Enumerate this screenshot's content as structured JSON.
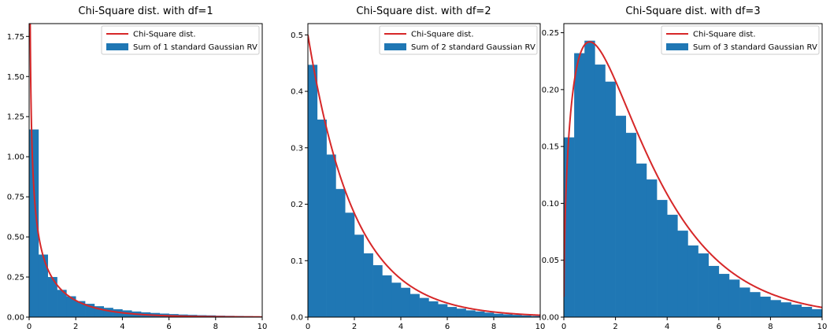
{
  "colors": {
    "bar": "#1f77b4",
    "curve": "#d62728",
    "axis": "#000000"
  },
  "legend_labels": {
    "curve": "Chi-Square dist.",
    "bars": [
      "Sum of 1 standard Gaussian RV",
      "Sum of 2 standard Gaussian RV",
      "Sum of 3 standard Gaussian RV"
    ]
  },
  "chart_data": [
    {
      "type": "bar",
      "title": "Chi-Square dist. with df=1",
      "df": 1,
      "xlim": [
        0,
        10
      ],
      "ylim": [
        0,
        1.83
      ],
      "x_ticks": [
        "0",
        "2",
        "4",
        "6",
        "8",
        "10"
      ],
      "y_ticks": [
        "0.00",
        "0.25",
        "0.50",
        "0.75",
        "1.00",
        "1.25",
        "1.50",
        "1.75"
      ],
      "bin_width": 0.4,
      "values": [
        1.17,
        0.39,
        0.25,
        0.17,
        0.13,
        0.1,
        0.083,
        0.068,
        0.058,
        0.049,
        0.042,
        0.035,
        0.03,
        0.026,
        0.022,
        0.019,
        0.016,
        0.014,
        0.012,
        0.011,
        0.009,
        0.008,
        0.007,
        0.006,
        0.005
      ],
      "series": [
        {
          "name": "Chi-Square dist.",
          "type": "line"
        },
        {
          "name": "Sum of 1 standard Gaussian RV",
          "type": "bar"
        }
      ],
      "legend_position": "upper right"
    },
    {
      "type": "bar",
      "title": "Chi-Square dist. with df=2",
      "df": 2,
      "xlim": [
        0,
        10
      ],
      "ylim": [
        0,
        0.52
      ],
      "x_ticks": [
        "0",
        "2",
        "4",
        "6",
        "8",
        "10"
      ],
      "y_ticks": [
        "0.0",
        "0.1",
        "0.2",
        "0.3",
        "0.4",
        "0.5"
      ],
      "bin_width": 0.4,
      "values": [
        0.447,
        0.35,
        0.288,
        0.227,
        0.185,
        0.146,
        0.113,
        0.092,
        0.074,
        0.061,
        0.052,
        0.041,
        0.034,
        0.028,
        0.023,
        0.018,
        0.015,
        0.012,
        0.01,
        0.008,
        0.006,
        0.005,
        0.004,
        0.003,
        0.002
      ],
      "series": [
        {
          "name": "Chi-Square dist.",
          "type": "line"
        },
        {
          "name": "Sum of 2 standard Gaussian RV",
          "type": "bar"
        }
      ],
      "legend_position": "upper right"
    },
    {
      "type": "bar",
      "title": "Chi-Square dist. with df=3",
      "df": 3,
      "xlim": [
        0,
        10
      ],
      "ylim": [
        0,
        0.258
      ],
      "x_ticks": [
        "0",
        "2",
        "4",
        "6",
        "8",
        "10"
      ],
      "y_ticks": [
        "0.00",
        "0.05",
        "0.10",
        "0.15",
        "0.20",
        "0.25"
      ],
      "bin_width": 0.4,
      "values": [
        0.158,
        0.232,
        0.243,
        0.222,
        0.207,
        0.177,
        0.162,
        0.135,
        0.121,
        0.103,
        0.09,
        0.076,
        0.063,
        0.056,
        0.045,
        0.038,
        0.033,
        0.026,
        0.022,
        0.018,
        0.015,
        0.013,
        0.011,
        0.009,
        0.007
      ],
      "series": [
        {
          "name": "Chi-Square dist.",
          "type": "line"
        },
        {
          "name": "Sum of 3 standard Gaussian RV",
          "type": "bar"
        }
      ],
      "legend_position": "upper right"
    }
  ]
}
